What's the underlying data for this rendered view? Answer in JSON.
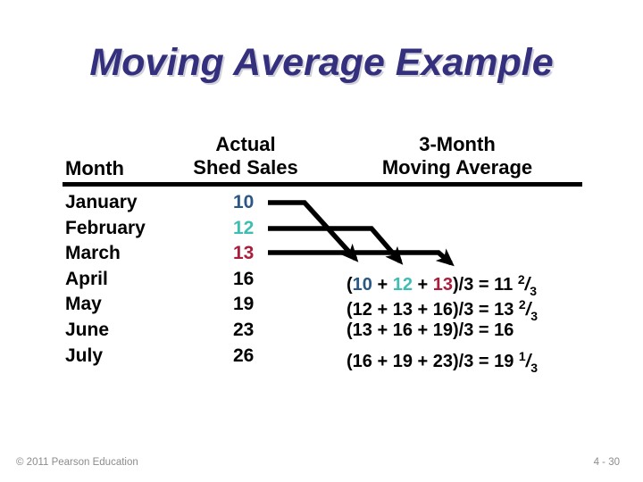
{
  "slide": {
    "title": "Moving Average Example",
    "footer": {
      "copyright": "© 2011 Pearson Education",
      "page": "4 - 30"
    }
  },
  "colors": {
    "title": "#34307D",
    "jan": "#2A5783",
    "feb": "#3EBEB2",
    "mar": "#A91E3C",
    "text": "#000000",
    "footer": "#8C8C8C"
  },
  "table": {
    "headers": {
      "month": "Month",
      "sales": [
        "Actual",
        "Shed Sales"
      ],
      "average": [
        "3-Month",
        "Moving Average"
      ]
    },
    "rows": [
      {
        "month": "January",
        "sales": "10",
        "color_key": "jan"
      },
      {
        "month": "February",
        "sales": "12",
        "color_key": "feb"
      },
      {
        "month": "March",
        "sales": "13",
        "color_key": "mar"
      },
      {
        "month": "April",
        "sales": "16",
        "color_key": "text"
      },
      {
        "month": "May",
        "sales": "19",
        "color_key": "text"
      },
      {
        "month": "June",
        "sales": "23",
        "color_key": "text"
      },
      {
        "month": "July",
        "sales": "26",
        "color_key": "text"
      }
    ],
    "formulas": [
      {
        "aligned_month": "April",
        "parts": [
          {
            "t": "(",
            "k": "text"
          },
          {
            "t": "10",
            "k": "jan"
          },
          {
            "t": " + ",
            "k": "text"
          },
          {
            "t": "12",
            "k": "feb"
          },
          {
            "t": " + ",
            "k": "text"
          },
          {
            "t": "13",
            "k": "mar"
          },
          {
            "t": ")/3 = 11 ",
            "k": "text"
          },
          {
            "t": "2",
            "k": "text",
            "s": "sup"
          },
          {
            "t": "/",
            "k": "text",
            "s": "slash"
          },
          {
            "t": "3",
            "k": "text",
            "s": "sub"
          }
        ]
      },
      {
        "aligned_month": "May",
        "parts": [
          {
            "t": "(12 + 13 + 16)/3 = 13 ",
            "k": "text"
          },
          {
            "t": "2",
            "k": "text",
            "s": "sup"
          },
          {
            "t": "/",
            "k": "text",
            "s": "slash"
          },
          {
            "t": "3",
            "k": "text",
            "s": "sub"
          }
        ]
      },
      {
        "aligned_month": "June",
        "parts": [
          {
            "t": "(13 + 16 + 19)/3 = 16",
            "k": "text"
          }
        ]
      },
      {
        "aligned_month": "July",
        "parts": [
          {
            "t": "(16 + 19 + 23)/3 = 19 ",
            "k": "text"
          },
          {
            "t": "1",
            "k": "text",
            "s": "sup"
          },
          {
            "t": "/",
            "k": "text",
            "s": "slash"
          },
          {
            "t": "3",
            "k": "text",
            "s": "sub"
          }
        ]
      }
    ]
  }
}
